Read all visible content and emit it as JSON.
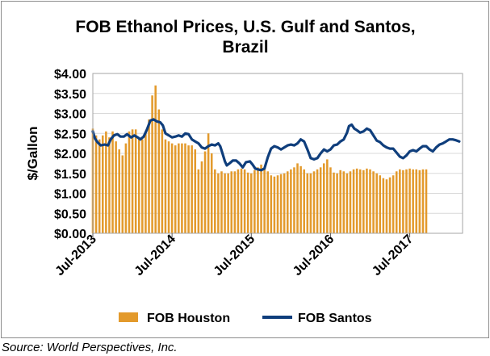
{
  "chart_data": {
    "type": "bar+line",
    "title_line1": "FOB Ethanol Prices, U.S. Gulf and Santos,",
    "title_line2": "Brazil",
    "ylabel": "$/Gallon",
    "ylim": [
      0,
      4
    ],
    "y_ticks": [
      "$0.00",
      "$0.50",
      "$1.00",
      "$1.50",
      "$2.00",
      "$2.50",
      "$3.00",
      "$3.50",
      "$4.00"
    ],
    "x_ticks": [
      "Jul-2013",
      "Jul-2014",
      "Jul-2015",
      "Jul-2016",
      "Jul-2017"
    ],
    "x_range_months": [
      "Jul-2013",
      "Oct-2017"
    ],
    "grid": "horizontal-light",
    "legend_position": "bottom",
    "series": [
      {
        "name": "FOB Houston",
        "type": "bar",
        "color": "#E39A2C",
        "points": [
          [
            0,
            2.62
          ],
          [
            0.5,
            2.45
          ],
          [
            1,
            2.35
          ],
          [
            1.5,
            2.45
          ],
          [
            2,
            2.55
          ],
          [
            2.5,
            2.4
          ],
          [
            3,
            2.55
          ],
          [
            3.5,
            2.3
          ],
          [
            4,
            2.1
          ],
          [
            4.5,
            1.95
          ],
          [
            5,
            2.25
          ],
          [
            5.5,
            2.55
          ],
          [
            6,
            2.6
          ],
          [
            6.5,
            2.6
          ],
          [
            7,
            2.4
          ],
          [
            7.5,
            2.35
          ],
          [
            8,
            2.55
          ],
          [
            8.5,
            2.85
          ],
          [
            9,
            3.45
          ],
          [
            9.5,
            3.7
          ],
          [
            10,
            3.1
          ],
          [
            10.5,
            2.6
          ],
          [
            11,
            2.35
          ],
          [
            11.5,
            2.3
          ],
          [
            12,
            2.25
          ],
          [
            12.5,
            2.2
          ],
          [
            13,
            2.25
          ],
          [
            13.5,
            2.25
          ],
          [
            14,
            2.25
          ],
          [
            14.5,
            2.2
          ],
          [
            15,
            2.2
          ],
          [
            15.5,
            2.1
          ],
          [
            16,
            1.6
          ],
          [
            16.5,
            1.8
          ],
          [
            17,
            2.05
          ],
          [
            17.5,
            2.5
          ],
          [
            18,
            2.0
          ],
          [
            18.5,
            1.6
          ],
          [
            19,
            1.5
          ],
          [
            19.5,
            1.55
          ],
          [
            20,
            1.5
          ],
          [
            20.5,
            1.5
          ],
          [
            21,
            1.55
          ],
          [
            21.5,
            1.55
          ],
          [
            22,
            1.6
          ],
          [
            22.5,
            1.62
          ],
          [
            23,
            1.6
          ],
          [
            23.5,
            1.52
          ],
          [
            24,
            1.5
          ],
          [
            24.5,
            1.58
          ],
          [
            25,
            1.65
          ],
          [
            25.5,
            1.72
          ],
          [
            26,
            1.65
          ],
          [
            26.5,
            1.55
          ],
          [
            27,
            1.45
          ],
          [
            27.5,
            1.42
          ],
          [
            28,
            1.45
          ],
          [
            28.5,
            1.48
          ],
          [
            29,
            1.5
          ],
          [
            29.5,
            1.55
          ],
          [
            30,
            1.6
          ],
          [
            30.5,
            1.65
          ],
          [
            31,
            1.75
          ],
          [
            31.5,
            1.68
          ],
          [
            32,
            1.6
          ],
          [
            32.5,
            1.5
          ],
          [
            33,
            1.5
          ],
          [
            33.5,
            1.55
          ],
          [
            34,
            1.6
          ],
          [
            34.5,
            1.65
          ],
          [
            35,
            1.75
          ],
          [
            35.5,
            1.85
          ],
          [
            36,
            1.65
          ],
          [
            36.5,
            1.52
          ],
          [
            37,
            1.5
          ],
          [
            37.5,
            1.58
          ],
          [
            38,
            1.55
          ],
          [
            38.5,
            1.5
          ],
          [
            39,
            1.55
          ],
          [
            39.5,
            1.6
          ],
          [
            40,
            1.62
          ],
          [
            40.5,
            1.6
          ],
          [
            41,
            1.58
          ],
          [
            41.5,
            1.62
          ],
          [
            42,
            1.6
          ],
          [
            42.5,
            1.55
          ],
          [
            43,
            1.5
          ],
          [
            43.5,
            1.45
          ],
          [
            44,
            1.38
          ],
          [
            44.5,
            1.35
          ],
          [
            45,
            1.4
          ],
          [
            45.5,
            1.45
          ],
          [
            46,
            1.55
          ],
          [
            46.5,
            1.6
          ],
          [
            47,
            1.58
          ],
          [
            47.5,
            1.6
          ],
          [
            48,
            1.62
          ],
          [
            48.5,
            1.6
          ],
          [
            49,
            1.6
          ],
          [
            49.5,
            1.58
          ],
          [
            50,
            1.6
          ],
          [
            50.5,
            1.6
          ]
        ]
      },
      {
        "name": "FOB Santos",
        "type": "line",
        "color": "#0F3E7C",
        "points": [
          [
            0,
            2.55
          ],
          [
            0.3,
            2.38
          ],
          [
            0.7,
            2.28
          ],
          [
            1.2,
            2.2
          ],
          [
            1.8,
            2.22
          ],
          [
            2.3,
            2.2
          ],
          [
            2.7,
            2.35
          ],
          [
            3.2,
            2.45
          ],
          [
            3.7,
            2.48
          ],
          [
            4.2,
            2.42
          ],
          [
            4.7,
            2.42
          ],
          [
            5.2,
            2.48
          ],
          [
            5.8,
            2.4
          ],
          [
            6.3,
            2.45
          ],
          [
            6.8,
            2.4
          ],
          [
            7.2,
            2.35
          ],
          [
            7.7,
            2.42
          ],
          [
            8.2,
            2.6
          ],
          [
            8.7,
            2.82
          ],
          [
            9.2,
            2.85
          ],
          [
            9.7,
            2.8
          ],
          [
            10.2,
            2.78
          ],
          [
            10.6,
            2.7
          ],
          [
            11,
            2.5
          ],
          [
            11.5,
            2.45
          ],
          [
            12,
            2.4
          ],
          [
            12.5,
            2.42
          ],
          [
            13,
            2.45
          ],
          [
            13.5,
            2.42
          ],
          [
            14,
            2.5
          ],
          [
            14.5,
            2.48
          ],
          [
            15,
            2.35
          ],
          [
            15.5,
            2.3
          ],
          [
            16,
            2.25
          ],
          [
            16.5,
            2.15
          ],
          [
            17,
            2.12
          ],
          [
            17.5,
            2.18
          ],
          [
            18,
            2.22
          ],
          [
            18.5,
            2.2
          ],
          [
            19,
            2.25
          ],
          [
            19.3,
            2.18
          ],
          [
            19.6,
            2.02
          ],
          [
            20,
            1.8
          ],
          [
            20.3,
            1.7
          ],
          [
            20.7,
            1.75
          ],
          [
            21.2,
            1.82
          ],
          [
            21.7,
            1.82
          ],
          [
            22.2,
            1.75
          ],
          [
            22.7,
            1.65
          ],
          [
            23.2,
            1.78
          ],
          [
            23.8,
            1.8
          ],
          [
            24.2,
            1.72
          ],
          [
            24.6,
            1.62
          ],
          [
            25,
            1.6
          ],
          [
            25.5,
            1.58
          ],
          [
            26,
            1.62
          ],
          [
            26.5,
            1.9
          ],
          [
            27,
            2.12
          ],
          [
            27.5,
            2.18
          ],
          [
            28,
            2.15
          ],
          [
            28.5,
            2.1
          ],
          [
            29,
            2.15
          ],
          [
            29.5,
            2.2
          ],
          [
            30,
            2.22
          ],
          [
            30.5,
            2.2
          ],
          [
            31,
            2.25
          ],
          [
            31.5,
            2.35
          ],
          [
            32,
            2.3
          ],
          [
            32.5,
            2.1
          ],
          [
            33,
            1.88
          ],
          [
            33.5,
            1.85
          ],
          [
            34,
            1.88
          ],
          [
            34.5,
            2.0
          ],
          [
            35,
            2.1
          ],
          [
            35.5,
            2.05
          ],
          [
            36,
            2.1
          ],
          [
            36.5,
            2.2
          ],
          [
            37,
            2.22
          ],
          [
            37.5,
            2.3
          ],
          [
            38,
            2.35
          ],
          [
            38.5,
            2.52
          ],
          [
            38.8,
            2.68
          ],
          [
            39.2,
            2.72
          ],
          [
            39.6,
            2.62
          ],
          [
            40,
            2.58
          ],
          [
            40.5,
            2.52
          ],
          [
            41,
            2.55
          ],
          [
            41.5,
            2.62
          ],
          [
            42,
            2.58
          ],
          [
            42.5,
            2.45
          ],
          [
            43,
            2.32
          ],
          [
            43.5,
            2.28
          ],
          [
            44,
            2.2
          ],
          [
            44.5,
            2.15
          ],
          [
            45,
            2.12
          ],
          [
            45.5,
            2.12
          ],
          [
            46,
            2.02
          ],
          [
            46.5,
            1.92
          ],
          [
            47,
            1.88
          ],
          [
            47.5,
            1.95
          ],
          [
            48,
            2.05
          ],
          [
            48.5,
            2.08
          ],
          [
            49,
            2.05
          ],
          [
            49.5,
            2.12
          ],
          [
            50,
            2.18
          ],
          [
            50.5,
            2.18
          ],
          [
            51,
            2.1
          ],
          [
            51.5,
            2.05
          ],
          [
            52,
            2.15
          ],
          [
            52.5,
            2.22
          ],
          [
            53,
            2.25
          ],
          [
            53.5,
            2.3
          ],
          [
            54,
            2.35
          ],
          [
            54.5,
            2.35
          ],
          [
            55,
            2.33
          ],
          [
            55.5,
            2.3
          ]
        ]
      }
    ]
  },
  "source_note": "Source: World Perspectives, Inc."
}
